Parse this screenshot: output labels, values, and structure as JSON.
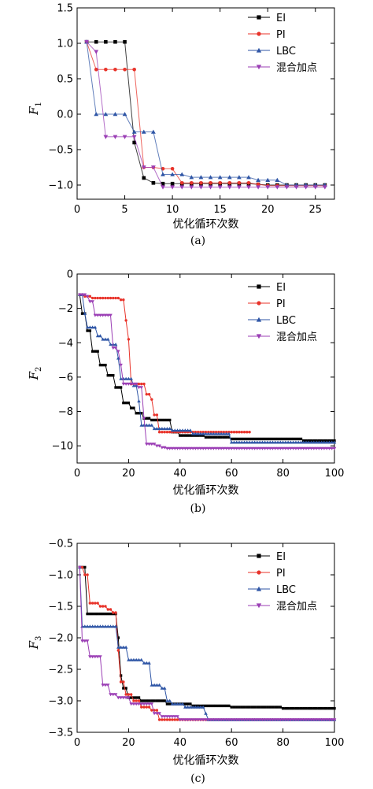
{
  "chart_data": [
    {
      "type": "line",
      "panel_label": "(a)",
      "xlabel": "优化循环次数",
      "ylabel": "F",
      "ylabel_sub": "1",
      "xlim": [
        0,
        27
      ],
      "ylim": [
        -1.2,
        1.5
      ],
      "xticks": [
        0,
        5,
        10,
        15,
        20,
        25
      ],
      "yticks": [
        -1.0,
        -0.5,
        0.0,
        0.5,
        1.0,
        1.5
      ],
      "ytick_labels": [
        "−1.0",
        "−0.5",
        "0.0",
        "0.5",
        "1.0",
        "1.5"
      ],
      "legend_position": "top-right",
      "series": [
        {
          "name": "EI",
          "color": "#000000",
          "marker": "square",
          "points": [
            [
              1,
              1.02
            ],
            [
              2,
              1.02
            ],
            [
              3,
              1.02
            ],
            [
              4,
              1.02
            ],
            [
              5,
              1.02
            ],
            [
              6,
              -0.4
            ],
            [
              7,
              -0.9
            ],
            [
              8,
              -0.97
            ],
            [
              9,
              -0.98
            ],
            [
              10,
              -0.98
            ],
            [
              11,
              -0.98
            ],
            [
              12,
              -0.98
            ],
            [
              13,
              -0.98
            ],
            [
              14,
              -0.98
            ],
            [
              15,
              -0.98
            ],
            [
              16,
              -0.98
            ],
            [
              17,
              -0.98
            ],
            [
              18,
              -0.98
            ],
            [
              19,
              -0.99
            ],
            [
              20,
              -1.0
            ],
            [
              21,
              -1.0
            ],
            [
              22,
              -1.0
            ],
            [
              23,
              -1.0
            ],
            [
              24,
              -1.0
            ],
            [
              25,
              -1.0
            ],
            [
              26,
              -1.0
            ]
          ]
        },
        {
          "name": "PI",
          "color": "#e8332a",
          "marker": "circle",
          "points": [
            [
              1,
              1.02
            ],
            [
              2,
              0.63
            ],
            [
              3,
              0.63
            ],
            [
              4,
              0.63
            ],
            [
              5,
              0.63
            ],
            [
              6,
              0.63
            ],
            [
              7,
              -0.75
            ],
            [
              8,
              -0.75
            ],
            [
              9,
              -0.77
            ],
            [
              10,
              -0.77
            ],
            [
              11,
              -0.97
            ],
            [
              12,
              -0.97
            ],
            [
              13,
              -0.97
            ],
            [
              14,
              -0.97
            ],
            [
              15,
              -0.97
            ],
            [
              16,
              -0.97
            ],
            [
              17,
              -0.97
            ],
            [
              18,
              -0.97
            ],
            [
              19,
              -0.99
            ],
            [
              20,
              -1.01
            ],
            [
              21,
              -1.01
            ],
            [
              22,
              -1.01
            ],
            [
              23,
              -1.01
            ],
            [
              24,
              -1.01
            ],
            [
              25,
              -1.01
            ],
            [
              26,
              -1.01
            ]
          ]
        },
        {
          "name": "LBC",
          "color": "#2f56a6",
          "marker": "triangle-up",
          "points": [
            [
              1,
              1.02
            ],
            [
              2,
              0.0
            ],
            [
              3,
              0.0
            ],
            [
              4,
              0.0
            ],
            [
              5,
              0.0
            ],
            [
              6,
              -0.25
            ],
            [
              7,
              -0.25
            ],
            [
              8,
              -0.25
            ],
            [
              9,
              -0.85
            ],
            [
              10,
              -0.85
            ],
            [
              11,
              -0.85
            ],
            [
              12,
              -0.89
            ],
            [
              13,
              -0.89
            ],
            [
              14,
              -0.89
            ],
            [
              15,
              -0.89
            ],
            [
              16,
              -0.89
            ],
            [
              17,
              -0.89
            ],
            [
              18,
              -0.89
            ],
            [
              19,
              -0.93
            ],
            [
              20,
              -0.93
            ],
            [
              21,
              -0.93
            ],
            [
              22,
              -1.0
            ],
            [
              23,
              -1.0
            ],
            [
              24,
              -1.0
            ],
            [
              25,
              -1.0
            ],
            [
              26,
              -1.0
            ]
          ]
        },
        {
          "name": "混合加点",
          "color": "#9b3fb5",
          "marker": "triangle-down",
          "points": [
            [
              1,
              1.02
            ],
            [
              2,
              0.88
            ],
            [
              3,
              -0.32
            ],
            [
              4,
              -0.32
            ],
            [
              5,
              -0.32
            ],
            [
              6,
              -0.32
            ],
            [
              7,
              -0.75
            ],
            [
              8,
              -0.75
            ],
            [
              9,
              -1.03
            ],
            [
              10,
              -1.03
            ],
            [
              11,
              -1.03
            ],
            [
              12,
              -1.03
            ],
            [
              13,
              -1.03
            ],
            [
              14,
              -1.03
            ],
            [
              15,
              -1.03
            ],
            [
              16,
              -1.03
            ],
            [
              17,
              -1.03
            ],
            [
              18,
              -1.03
            ],
            [
              19,
              -1.03
            ],
            [
              20,
              -1.03
            ],
            [
              21,
              -1.03
            ],
            [
              22,
              -1.03
            ],
            [
              23,
              -1.03
            ],
            [
              24,
              -1.03
            ],
            [
              25,
              -1.03
            ],
            [
              26,
              -1.03
            ]
          ]
        }
      ]
    },
    {
      "type": "line",
      "panel_label": "(b)",
      "xlabel": "优化循环次数",
      "ylabel": "F",
      "ylabel_sub": "2",
      "xlim": [
        0,
        100
      ],
      "ylim": [
        -11,
        0
      ],
      "xticks": [
        0,
        20,
        40,
        60,
        80,
        100
      ],
      "yticks": [
        -10,
        -8,
        -6,
        -4,
        -2,
        0
      ],
      "ytick_labels": [
        "−10",
        "−8",
        "−6",
        "−4",
        "−2",
        "0"
      ],
      "legend_position": "top-right",
      "series": [
        {
          "name": "EI",
          "color": "#000000",
          "marker": "square",
          "steps": [
            [
              1,
              -1.2
            ],
            [
              2,
              -2.3
            ],
            [
              4,
              -3.3
            ],
            [
              6,
              -4.5
            ],
            [
              9,
              -5.3
            ],
            [
              12,
              -5.9
            ],
            [
              15,
              -6.6
            ],
            [
              18,
              -7.5
            ],
            [
              21,
              -7.8
            ],
            [
              23,
              -8.1
            ],
            [
              26,
              -8.4
            ],
            [
              29,
              -8.5
            ],
            [
              33,
              -8.5
            ],
            [
              37,
              -9.2
            ],
            [
              40,
              -9.4
            ],
            [
              50,
              -9.5
            ],
            [
              60,
              -9.6
            ],
            [
              80,
              -9.6
            ],
            [
              88,
              -9.7
            ],
            [
              100,
              -9.7
            ]
          ]
        },
        {
          "name": "PI",
          "color": "#e8332a",
          "marker": "circle",
          "steps": [
            [
              1,
              -1.2
            ],
            [
              3,
              -1.3
            ],
            [
              6,
              -1.4
            ],
            [
              17,
              -1.5
            ],
            [
              19,
              -2.7
            ],
            [
              20,
              -3.8
            ],
            [
              21,
              -6.4
            ],
            [
              27,
              -7.0
            ],
            [
              29,
              -7.3
            ],
            [
              30,
              -8.2
            ],
            [
              32,
              -9.2
            ],
            [
              35,
              -9.2
            ],
            [
              67,
              -9.2
            ]
          ]
        },
        {
          "name": "LBC",
          "color": "#2f56a6",
          "marker": "triangle-up",
          "steps": [
            [
              1,
              -1.2
            ],
            [
              3,
              -2.3
            ],
            [
              4,
              -3.1
            ],
            [
              8,
              -3.6
            ],
            [
              10,
              -3.8
            ],
            [
              13,
              -4.1
            ],
            [
              16,
              -4.9
            ],
            [
              17,
              -6.1
            ],
            [
              22,
              -6.5
            ],
            [
              24,
              -7.4
            ],
            [
              25,
              -8.8
            ],
            [
              30,
              -9.0
            ],
            [
              37,
              -9.1
            ],
            [
              45,
              -9.3
            ],
            [
              60,
              -9.8
            ],
            [
              80,
              -9.8
            ],
            [
              100,
              -9.8
            ]
          ]
        },
        {
          "name": "混合加点",
          "color": "#9b3fb5",
          "marker": "triangle-down",
          "steps": [
            [
              1,
              -1.2
            ],
            [
              4,
              -1.3
            ],
            [
              5,
              -1.6
            ],
            [
              7,
              -2.4
            ],
            [
              14,
              -4.3
            ],
            [
              16,
              -4.5
            ],
            [
              17,
              -5.3
            ],
            [
              18,
              -6.4
            ],
            [
              24,
              -6.6
            ],
            [
              26,
              -8.4
            ],
            [
              27,
              -9.9
            ],
            [
              31,
              -10.0
            ],
            [
              33,
              -10.1
            ],
            [
              35,
              -10.15
            ],
            [
              100,
              -10.15
            ]
          ]
        }
      ]
    },
    {
      "type": "line",
      "panel_label": "(c)",
      "xlabel": "优化循环次数",
      "ylabel": "F",
      "ylabel_sub": "3",
      "xlim": [
        0,
        100
      ],
      "ylim": [
        -3.5,
        -0.5
      ],
      "xticks": [
        0,
        20,
        40,
        60,
        80,
        100
      ],
      "yticks": [
        -3.5,
        -3.0,
        -2.5,
        -2.0,
        -1.5,
        -1.0,
        -0.5
      ],
      "ytick_labels": [
        "−3.5",
        "−3.0",
        "−2.5",
        "−2.0",
        "−1.5",
        "−1.0",
        "−0.5"
      ],
      "legend_position": "top-right",
      "series": [
        {
          "name": "EI",
          "color": "#000000",
          "marker": "square",
          "steps": [
            [
              1,
              -0.88
            ],
            [
              4,
              -1.62
            ],
            [
              8,
              -1.62
            ],
            [
              15,
              -1.62
            ],
            [
              16,
              -2.0
            ],
            [
              17,
              -2.6
            ],
            [
              18,
              -2.8
            ],
            [
              20,
              -2.95
            ],
            [
              25,
              -3.0
            ],
            [
              35,
              -3.05
            ],
            [
              45,
              -3.08
            ],
            [
              60,
              -3.1
            ],
            [
              80,
              -3.12
            ],
            [
              100,
              -3.12
            ]
          ]
        },
        {
          "name": "PI",
          "color": "#e8332a",
          "marker": "circle",
          "steps": [
            [
              1,
              -0.88
            ],
            [
              3,
              -1.0
            ],
            [
              5,
              -1.45
            ],
            [
              9,
              -1.5
            ],
            [
              12,
              -1.55
            ],
            [
              14,
              -1.6
            ],
            [
              16,
              -2.2
            ],
            [
              17,
              -2.7
            ],
            [
              19,
              -2.9
            ],
            [
              22,
              -3.0
            ],
            [
              25,
              -3.1
            ],
            [
              29,
              -3.15
            ],
            [
              32,
              -3.3
            ],
            [
              100,
              -3.3
            ]
          ]
        },
        {
          "name": "LBC",
          "color": "#2f56a6",
          "marker": "triangle-up",
          "steps": [
            [
              1,
              -0.88
            ],
            [
              2,
              -1.82
            ],
            [
              8,
              -1.82
            ],
            [
              15,
              -1.82
            ],
            [
              16,
              -2.15
            ],
            [
              20,
              -2.35
            ],
            [
              26,
              -2.4
            ],
            [
              29,
              -2.75
            ],
            [
              33,
              -2.8
            ],
            [
              35,
              -3.0
            ],
            [
              37,
              -3.05
            ],
            [
              42,
              -3.1
            ],
            [
              50,
              -3.2
            ],
            [
              51,
              -3.3
            ],
            [
              100,
              -3.3
            ]
          ]
        },
        {
          "name": "混合加点",
          "color": "#9b3fb5",
          "marker": "triangle-down",
          "steps": [
            [
              1,
              -0.88
            ],
            [
              2,
              -2.05
            ],
            [
              5,
              -2.3
            ],
            [
              10,
              -2.75
            ],
            [
              13,
              -2.9
            ],
            [
              16,
              -2.95
            ],
            [
              21,
              -3.05
            ],
            [
              25,
              -3.05
            ],
            [
              30,
              -3.2
            ],
            [
              33,
              -3.25
            ],
            [
              40,
              -3.3
            ],
            [
              100,
              -3.3
            ]
          ]
        }
      ]
    }
  ]
}
